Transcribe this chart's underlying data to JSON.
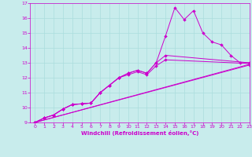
{
  "xlabel": "Windchill (Refroidissement éolien,°C)",
  "ylabel": "",
  "xlim": [
    -0.5,
    23
  ],
  "ylim": [
    9,
    17
  ],
  "xticks": [
    0,
    1,
    2,
    3,
    4,
    5,
    6,
    7,
    8,
    9,
    10,
    11,
    12,
    13,
    14,
    15,
    16,
    17,
    18,
    19,
    20,
    21,
    22,
    23
  ],
  "yticks": [
    9,
    10,
    11,
    12,
    13,
    14,
    15,
    16,
    17
  ],
  "bg_color": "#c8ecec",
  "line_color": "#cc00cc",
  "grid_color": "#aadddd",
  "lines": [
    [
      0,
      9.0,
      1,
      9.3,
      2,
      9.5,
      3,
      9.9,
      4,
      10.2,
      5,
      10.25,
      6,
      10.3,
      7,
      11.0,
      8,
      11.5,
      9,
      12.0,
      10,
      12.3,
      11,
      12.5,
      12,
      12.3,
      13,
      13.0,
      14,
      14.8,
      15,
      16.7,
      16,
      15.9,
      17,
      16.5,
      18,
      15.0,
      19,
      14.4,
      20,
      14.2,
      21,
      13.5,
      22,
      13.0,
      23,
      13.0
    ],
    [
      0,
      9.0,
      1,
      9.3,
      2,
      9.5,
      3,
      9.9,
      4,
      10.2,
      5,
      10.25,
      6,
      10.3,
      7,
      11.0,
      8,
      11.5,
      9,
      12.0,
      10,
      12.3,
      11,
      12.5,
      12,
      12.3,
      13,
      13.0,
      14,
      13.5,
      23,
      13.0
    ],
    [
      0,
      9.0,
      1,
      9.3,
      2,
      9.5,
      3,
      9.9,
      4,
      10.2,
      5,
      10.25,
      6,
      10.3,
      7,
      11.0,
      8,
      11.5,
      9,
      12.0,
      10,
      12.2,
      11,
      12.4,
      12,
      12.2,
      13,
      12.8,
      14,
      13.2,
      23,
      12.95
    ],
    [
      0,
      9.0,
      23,
      12.9
    ],
    [
      0,
      9.0,
      23,
      12.85
    ]
  ],
  "linewidth": 0.7,
  "marker": "D",
  "markersize": 2.0,
  "tick_fontsize": 4.5,
  "xlabel_fontsize": 5.0
}
